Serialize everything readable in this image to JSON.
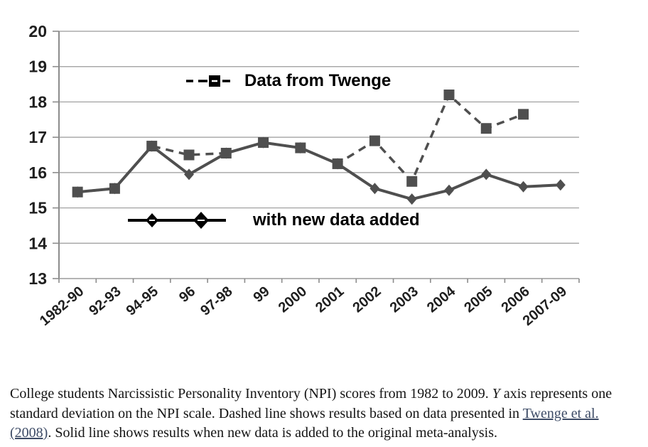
{
  "chart_data": {
    "type": "line",
    "categories": [
      "1982-90",
      "92-93",
      "94-95",
      "96",
      "97-98",
      "99",
      "2000",
      "2001",
      "2002",
      "2003",
      "2004",
      "2005",
      "2006",
      "2007-09"
    ],
    "series": [
      {
        "name": "Data from Twenge",
        "style": "dashed",
        "marker": "square",
        "values": [
          15.45,
          15.55,
          16.75,
          16.5,
          16.55,
          16.85,
          16.7,
          16.25,
          16.9,
          15.75,
          18.2,
          17.25,
          17.65,
          null
        ]
      },
      {
        "name": "with new data added",
        "style": "solid",
        "marker": "diamond",
        "values": [
          15.45,
          15.55,
          16.75,
          15.95,
          16.55,
          16.85,
          16.7,
          16.25,
          15.55,
          15.25,
          15.5,
          15.95,
          15.6,
          15.65
        ]
      }
    ],
    "title": "",
    "xlabel": "",
    "ylabel": "",
    "ylim": [
      13,
      20
    ],
    "yticks": [
      13,
      14,
      15,
      16,
      17,
      18,
      19,
      20
    ],
    "grid": true,
    "legend_position": "inside-plot",
    "line_color": "#4f4f4f",
    "grid_color": "#9a9a9a",
    "axis_color": "#8c8c8c",
    "legend_glyph_color": "#000000"
  },
  "caption": {
    "lead": "College students Narcissistic Personality Inventory (NPI) scores from 1982 to 2009. ",
    "y_var": "Y",
    "middle": " axis represents one standard deviation on the NPI scale. Dashed line shows results based on data presented in ",
    "link_text": "Twenge et al. (2008)",
    "tail": ". Solid line shows results when new data is added to the original meta-analysis."
  }
}
